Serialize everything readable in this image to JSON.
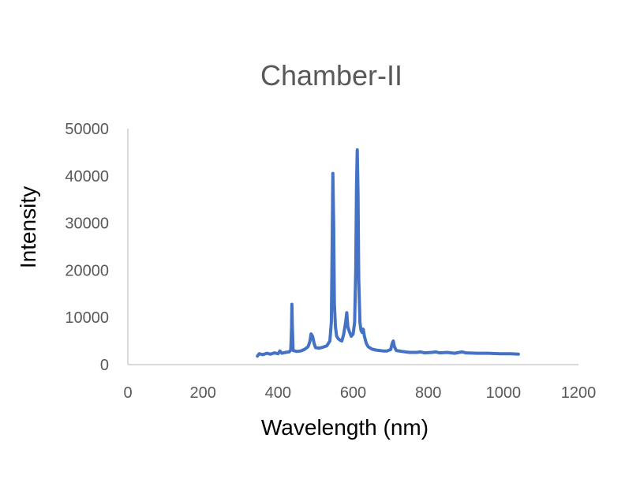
{
  "chart_data": {
    "type": "line",
    "title": "Chamber-II",
    "xlabel": "Wavelength (nm)",
    "ylabel": "Intensity",
    "xlim": [
      0,
      1200
    ],
    "ylim": [
      0,
      50000
    ],
    "x_ticks": [
      0,
      200,
      400,
      600,
      800,
      1000,
      1200
    ],
    "x_tick_labels": [
      "0",
      "200",
      "400",
      "600",
      "800",
      "1000",
      "1200"
    ],
    "y_ticks": [
      0,
      10000,
      20000,
      30000,
      40000,
      50000
    ],
    "y_tick_labels": [
      "0",
      "10000",
      "20000",
      "30000",
      "40000",
      "50000"
    ],
    "grid": false,
    "legend": "none",
    "series": [
      {
        "color": "#4472c4",
        "points": [
          [
            345,
            1800
          ],
          [
            350,
            2300
          ],
          [
            360,
            2100
          ],
          [
            370,
            2400
          ],
          [
            380,
            2200
          ],
          [
            390,
            2500
          ],
          [
            400,
            2300
          ],
          [
            405,
            2900
          ],
          [
            410,
            2400
          ],
          [
            420,
            2600
          ],
          [
            430,
            2700
          ],
          [
            434,
            3200
          ],
          [
            436,
            8000
          ],
          [
            437,
            12800
          ],
          [
            438,
            8500
          ],
          [
            440,
            3000
          ],
          [
            450,
            2800
          ],
          [
            460,
            2900
          ],
          [
            470,
            3200
          ],
          [
            480,
            3800
          ],
          [
            485,
            5000
          ],
          [
            488,
            6500
          ],
          [
            492,
            6000
          ],
          [
            496,
            4500
          ],
          [
            500,
            3600
          ],
          [
            510,
            3500
          ],
          [
            520,
            3700
          ],
          [
            530,
            4000
          ],
          [
            538,
            5000
          ],
          [
            542,
            9000
          ],
          [
            544,
            25000
          ],
          [
            546,
            40500
          ],
          [
            548,
            30000
          ],
          [
            550,
            13000
          ],
          [
            553,
            8000
          ],
          [
            556,
            6000
          ],
          [
            560,
            5500
          ],
          [
            565,
            5200
          ],
          [
            570,
            5000
          ],
          [
            575,
            6500
          ],
          [
            580,
            9000
          ],
          [
            583,
            11000
          ],
          [
            586,
            8000
          ],
          [
            590,
            7000
          ],
          [
            595,
            6000
          ],
          [
            600,
            6500
          ],
          [
            604,
            9000
          ],
          [
            607,
            20000
          ],
          [
            609,
            38000
          ],
          [
            611,
            45500
          ],
          [
            613,
            36000
          ],
          [
            615,
            18000
          ],
          [
            618,
            9000
          ],
          [
            621,
            7200
          ],
          [
            624,
            6800
          ],
          [
            627,
            7500
          ],
          [
            630,
            6000
          ],
          [
            635,
            4500
          ],
          [
            640,
            3800
          ],
          [
            650,
            3300
          ],
          [
            660,
            3100
          ],
          [
            670,
            3000
          ],
          [
            680,
            2900
          ],
          [
            690,
            2900
          ],
          [
            700,
            3200
          ],
          [
            704,
            4500
          ],
          [
            707,
            5000
          ],
          [
            710,
            3800
          ],
          [
            715,
            3000
          ],
          [
            730,
            2800
          ],
          [
            750,
            2600
          ],
          [
            770,
            2600
          ],
          [
            780,
            2700
          ],
          [
            790,
            2500
          ],
          [
            810,
            2600
          ],
          [
            820,
            2700
          ],
          [
            830,
            2500
          ],
          [
            850,
            2600
          ],
          [
            870,
            2400
          ],
          [
            890,
            2700
          ],
          [
            900,
            2500
          ],
          [
            930,
            2400
          ],
          [
            960,
            2400
          ],
          [
            990,
            2300
          ],
          [
            1020,
            2300
          ],
          [
            1040,
            2200
          ]
        ]
      }
    ]
  }
}
